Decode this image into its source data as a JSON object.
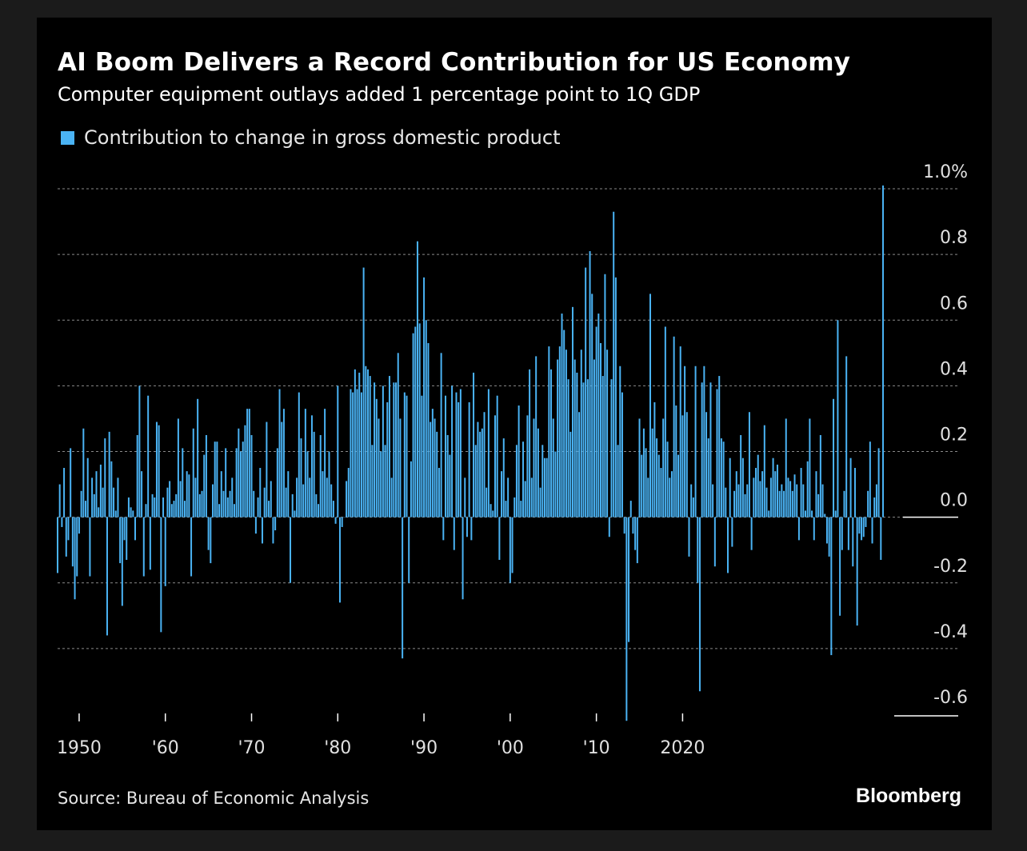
{
  "colors": {
    "bar": "#4ab3f4",
    "grid": "#8a8a8a",
    "text": "#ffffff",
    "muted": "#e0e0e0",
    "background": "#000000"
  },
  "chart_data": {
    "type": "bar",
    "title": "AI Boom Delivers a Record Contribution for US Economy",
    "subtitle": "Computer equipment outlays added 1 percentage point to 1Q GDP",
    "legend": [
      "Contribution to change in gross domestic product"
    ],
    "legend_position": "top-left",
    "source": "Source: Bureau of Economic Analysis",
    "brand": "Bloomberg",
    "ylim": [
      -0.6,
      1.0
    ],
    "y_ticks": [
      {
        "value": 1.0,
        "label": "1.0%"
      },
      {
        "value": 0.8,
        "label": "0.8"
      },
      {
        "value": 0.6,
        "label": "0.6"
      },
      {
        "value": 0.4,
        "label": "0.4"
      },
      {
        "value": 0.2,
        "label": "0.2"
      },
      {
        "value": 0.0,
        "label": "0.0"
      },
      {
        "value": -0.2,
        "label": "-0.2"
      },
      {
        "value": -0.4,
        "label": "-0.4"
      },
      {
        "value": -0.6,
        "label": "-0.6"
      }
    ],
    "x_ticks": [
      {
        "year": 1950,
        "label": "1950"
      },
      {
        "year": 1960,
        "label": "'60"
      },
      {
        "year": 1970,
        "label": "'70"
      },
      {
        "year": 1980,
        "label": "'80"
      },
      {
        "year": 1990,
        "label": "'90"
      },
      {
        "year": 2000,
        "label": "'00"
      },
      {
        "year": 2010,
        "label": "'10"
      },
      {
        "year": 2020,
        "label": "2020"
      }
    ],
    "grid": "horizontal-dotted",
    "series": [
      {
        "start_quarter": "1947Q3",
        "values": [
          -0.17,
          0.1,
          -0.03,
          0.15,
          -0.12,
          -0.07,
          0.21,
          -0.15,
          -0.25,
          -0.18,
          -0.05,
          0.08,
          0.27,
          0.05,
          0.18,
          -0.18,
          0.12,
          0.07,
          0.14,
          0.03,
          0.16,
          0.09,
          0.24,
          -0.36,
          0.26,
          0.17,
          0.09,
          0.02,
          0.12,
          -0.14,
          -0.27,
          -0.07,
          -0.13,
          0.06,
          0.03,
          0.02,
          -0.07,
          0.25,
          0.4,
          0.14,
          -0.18,
          0.04,
          0.37,
          -0.16,
          0.07,
          0.06,
          0.29,
          0.28,
          -0.35,
          0.06,
          -0.21,
          0.09,
          0.11,
          0.04,
          0.05,
          0.07,
          0.3,
          0.11,
          0.21,
          0.05,
          0.14,
          0.13,
          -0.18,
          0.27,
          0.12,
          0.36,
          0.07,
          0.08,
          0.19,
          0.25,
          -0.1,
          -0.14,
          0.1,
          0.23,
          0.23,
          0.04,
          0.14,
          0.08,
          0.21,
          0.06,
          0.08,
          0.12,
          0.04,
          0.21,
          0.27,
          0.2,
          0.23,
          0.28,
          0.33,
          0.33,
          0.25,
          0.08,
          -0.05,
          0.06,
          0.15,
          -0.08,
          0.09,
          0.29,
          0.05,
          0.11,
          -0.08,
          -0.04,
          0.21,
          0.39,
          0.29,
          0.33,
          0.09,
          0.14,
          -0.2,
          0.07,
          0.02,
          0.12,
          0.38,
          0.24,
          0.1,
          0.33,
          0.2,
          0.12,
          0.31,
          0.26,
          0.07,
          0.04,
          0.25,
          0.14,
          0.33,
          0.12,
          0.2,
          0.1,
          0.05,
          -0.02,
          0.4,
          -0.26,
          -0.03,
          0.0,
          0.11,
          0.15,
          0.39,
          0.38,
          0.45,
          0.39,
          0.44,
          0.38,
          0.76,
          0.46,
          0.45,
          0.43,
          0.22,
          0.41,
          0.36,
          0.3,
          0.2,
          0.4,
          0.22,
          0.35,
          0.43,
          0.12,
          0.41,
          0.41,
          0.5,
          0.3,
          -0.43,
          0.38,
          0.37,
          -0.2,
          0.17,
          0.56,
          0.58,
          0.84,
          0.59,
          0.37,
          0.73,
          0.6,
          0.53,
          0.29,
          0.33,
          0.3,
          0.26,
          0.15,
          0.5,
          -0.07,
          0.37,
          0.25,
          0.19,
          0.4,
          -0.1,
          0.38,
          0.35,
          0.39,
          -0.25,
          0.12,
          -0.06,
          0.35,
          -0.07,
          0.44,
          0.22,
          0.29,
          0.26,
          0.27,
          0.32,
          0.09,
          0.39,
          0.04,
          0.02,
          0.31,
          0.37,
          -0.13,
          0.14,
          0.24,
          0.05,
          0.12,
          -0.2,
          -0.17,
          0.06,
          0.22,
          0.34,
          0.05,
          0.23,
          0.11,
          0.31,
          0.45,
          0.12,
          0.3,
          0.49,
          0.27,
          0.09,
          0.22,
          0.18,
          0.18,
          0.52,
          0.45,
          0.3,
          0.2,
          0.48,
          0.52,
          0.62,
          0.57,
          0.51,
          0.42,
          0.26,
          0.64,
          0.48,
          0.44,
          0.32,
          0.51,
          0.41,
          0.76,
          0.42,
          0.81,
          0.68,
          0.48,
          0.58,
          0.62,
          0.53,
          0.43,
          0.74,
          0.51,
          -0.06,
          0.42,
          0.93,
          0.73,
          0.22,
          0.46,
          0.38,
          -0.05,
          -0.62,
          -0.38,
          0.05,
          -0.05,
          -0.1,
          -0.14,
          0.3,
          0.19,
          0.27,
          0.21,
          0.12,
          0.68,
          0.27,
          0.35,
          0.24,
          0.19,
          0.15,
          0.3,
          0.58,
          0.23,
          0.12,
          0.14,
          0.55,
          0.34,
          0.19,
          0.52,
          0.31,
          0.46,
          0.32,
          -0.12,
          0.1,
          0.06,
          0.46,
          -0.2,
          -0.53,
          0.41,
          0.46,
          0.32,
          0.24,
          0.41,
          0.1,
          -0.15,
          0.39,
          0.43,
          0.24,
          0.23,
          0.09,
          -0.17,
          0.18,
          -0.09,
          0.08,
          0.14,
          0.1,
          0.25,
          0.18,
          0.07,
          0.1,
          0.32,
          -0.1,
          0.12,
          0.15,
          0.19,
          0.11,
          0.14,
          0.28,
          0.09,
          0.02,
          0.12,
          0.18,
          0.14,
          0.16,
          0.08,
          0.1,
          0.08,
          0.3,
          0.12,
          0.11,
          0.08,
          0.13,
          0.1,
          -0.07,
          0.15,
          0.1,
          0.02,
          0.17,
          0.3,
          0.02,
          -0.07,
          0.14,
          0.07,
          0.25,
          0.1,
          0.01,
          -0.08,
          -0.12,
          -0.42,
          0.36,
          0.02,
          0.6,
          -0.3,
          -0.1,
          0.08,
          0.49,
          -0.1,
          0.18,
          -0.15,
          0.15,
          -0.33,
          -0.05,
          -0.07,
          -0.06,
          -0.03,
          0.08,
          0.23,
          -0.08,
          0.06,
          0.1,
          0.21,
          -0.13,
          1.01
        ]
      }
    ]
  }
}
